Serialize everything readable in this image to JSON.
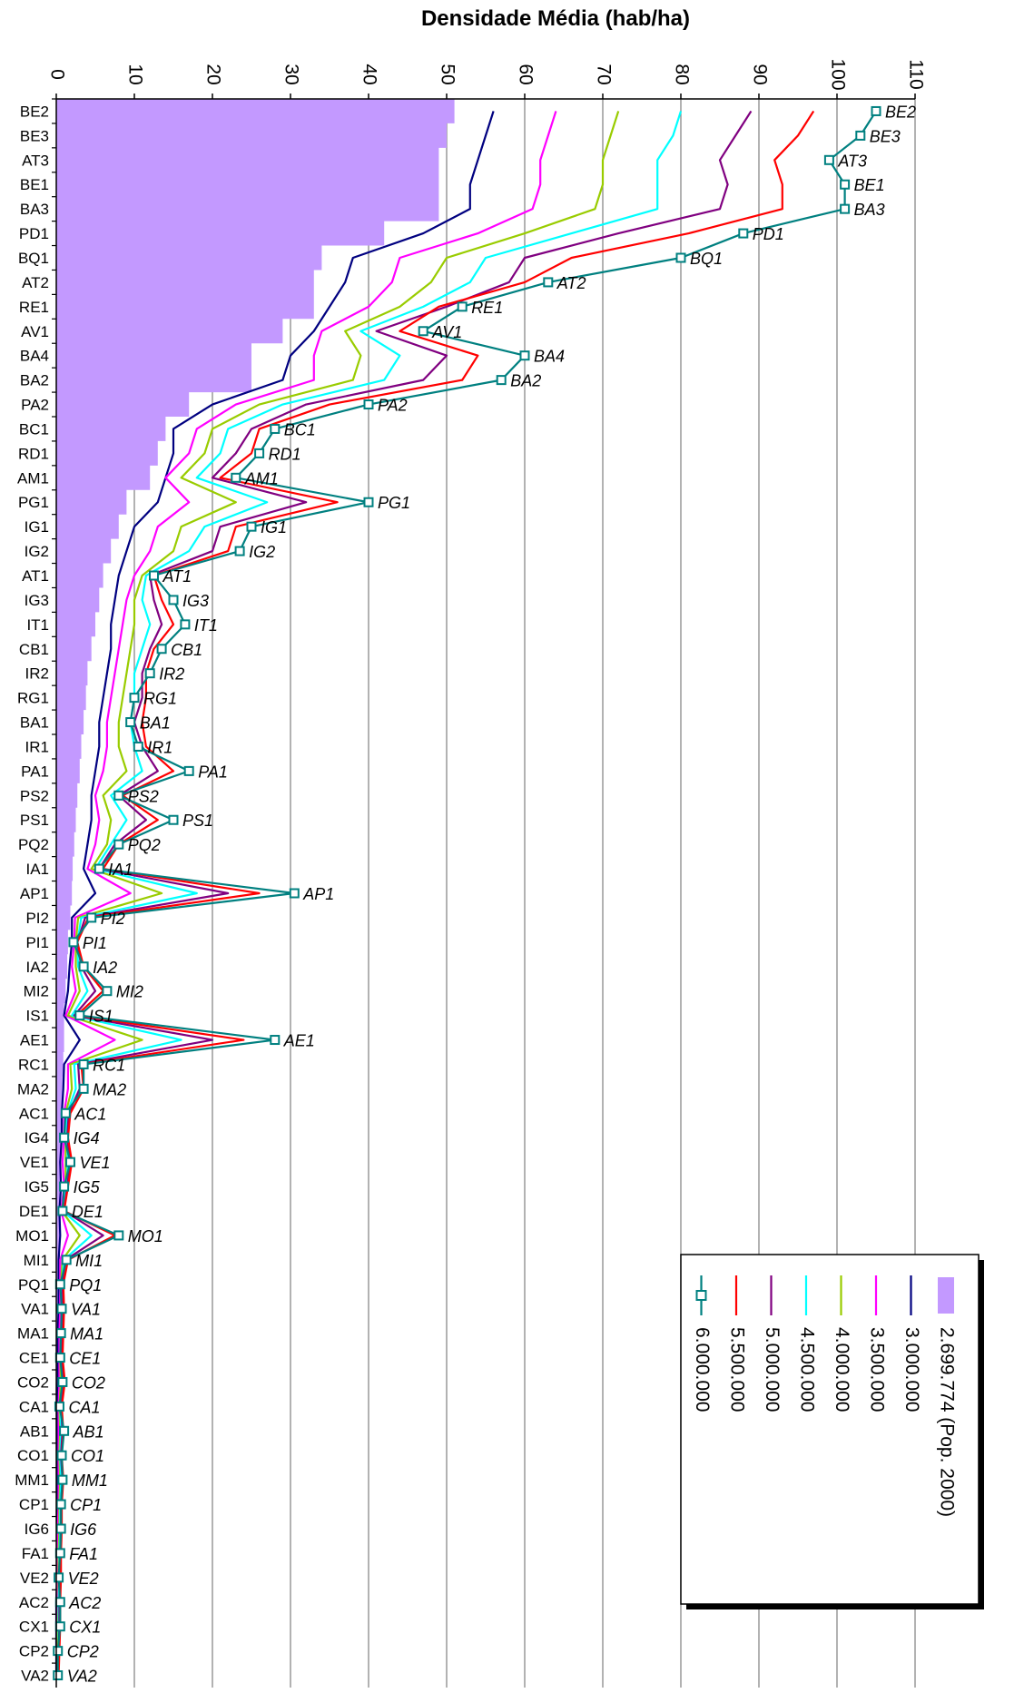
{
  "chart_data": {
    "type": "line",
    "title": "Densidade Média (hab/ha)",
    "orientation": "rotated-90-clockwise",
    "xlim": [
      0,
      110
    ],
    "ticks": [
      "0",
      "10",
      "20",
      "30",
      "40",
      "50",
      "60",
      "70",
      "80",
      "90",
      "100",
      "110"
    ],
    "categories": [
      "BE2",
      "BE3",
      "AT3",
      "BE1",
      "BA3",
      "PD1",
      "BQ1",
      "AT2",
      "RE1",
      "AV1",
      "BA4",
      "BA2",
      "PA2",
      "BC1",
      "RD1",
      "AM1",
      "PG1",
      "IG1",
      "IG2",
      "AT1",
      "IG3",
      "IT1",
      "CB1",
      "IR2",
      "RG1",
      "BA1",
      "IR1",
      "PA1",
      "PS2",
      "PS1",
      "PQ2",
      "IA1",
      "AP1",
      "PI2",
      "PI1",
      "IA2",
      "MI2",
      "IS1",
      "AE1",
      "RC1",
      "MA2",
      "AC1",
      "IG4",
      "VE1",
      "IG5",
      "DE1",
      "MO1",
      "MI1",
      "PQ1",
      "VA1",
      "MA1",
      "CE1",
      "CO2",
      "CA1",
      "AB1",
      "CO1",
      "MM1",
      "CP1",
      "IG6",
      "FA1",
      "VE2",
      "AC2",
      "CX1",
      "CP2",
      "VA2"
    ],
    "series": [
      {
        "name": "2.699.774 (Pop. 2000)",
        "kind": "area",
        "color": "#c399ff",
        "values": [
          51,
          50,
          49,
          49,
          49,
          42,
          34,
          33,
          33,
          29,
          25,
          25,
          17,
          14,
          13,
          12,
          9,
          8,
          7,
          6,
          5.5,
          5,
          4.5,
          4,
          3.8,
          3.5,
          3.2,
          3,
          2.7,
          2.5,
          2.3,
          2.1,
          2,
          1.8,
          1.5,
          1.4,
          1.2,
          1,
          1,
          0.9,
          0.8,
          0.7,
          0.6,
          0.5,
          0.5,
          0.4,
          0.4,
          0.3,
          0.3,
          0.3,
          0.2,
          0.2,
          0.2,
          0.1,
          0.1,
          0.1,
          0.1,
          0.1,
          0.1,
          0.1,
          0.1,
          0,
          0,
          0,
          0
        ]
      },
      {
        "name": "3.000.000",
        "kind": "line",
        "color": "#000080",
        "values": [
          56,
          55,
          54,
          53,
          53,
          47,
          38,
          37,
          35,
          33,
          30,
          29,
          20,
          15,
          15,
          14,
          13,
          10,
          9,
          8,
          7.5,
          7,
          7,
          6.5,
          6,
          5.5,
          5.5,
          5,
          4.5,
          4.5,
          4,
          3.5,
          5,
          2,
          2,
          1.7,
          1.5,
          1,
          3,
          1,
          0.9,
          0.7,
          0.7,
          0.5,
          0.6,
          0.4,
          0.5,
          0.3,
          0.3,
          0.3,
          0.2,
          0.2,
          0.2,
          0.1,
          0.1,
          0.1,
          0.1,
          0.1,
          0.1,
          0.1,
          0.1,
          0,
          0,
          0,
          0
        ]
      },
      {
        "name": "3.500.000",
        "kind": "line",
        "color": "#ff00ff",
        "values": [
          64,
          63,
          62,
          62,
          61,
          54,
          44,
          43,
          40,
          34,
          33,
          33,
          23,
          18,
          17,
          14,
          17,
          13,
          12,
          10,
          9,
          8.5,
          8,
          7.5,
          7,
          6.5,
          6.5,
          6,
          5,
          5.5,
          5,
          4,
          9.5,
          2.4,
          2.3,
          2,
          2.5,
          1.2,
          7.5,
          1.5,
          1.5,
          1,
          1,
          0.8,
          1,
          0.6,
          1.5,
          0.5,
          0.5,
          0.5,
          0.4,
          0.4,
          0.4,
          0.3,
          0.3,
          0.3,
          0.3,
          0.3,
          0.2,
          0.2,
          0.2,
          0.1,
          0.1,
          0.1,
          0.1
        ]
      },
      {
        "name": "4.000.000",
        "kind": "line",
        "color": "#99cc00",
        "values": [
          72,
          71,
          70,
          70,
          69,
          60,
          50,
          48,
          44,
          37,
          39,
          38,
          26,
          20,
          19,
          16,
          23,
          16,
          15,
          11,
          10,
          10,
          9.5,
          9,
          8.5,
          8,
          8,
          9,
          6,
          7,
          6.5,
          4.5,
          13.5,
          2.8,
          2.5,
          2.5,
          3,
          1.5,
          11,
          1.8,
          2,
          1.2,
          1.2,
          1.2,
          1.2,
          0.7,
          3,
          0.8,
          0.6,
          0.7,
          0.6,
          0.5,
          0.6,
          0.4,
          0.5,
          0.4,
          0.5,
          0.4,
          0.4,
          0.3,
          0.3,
          0.3,
          0.2,
          0.2,
          0.2
        ]
      },
      {
        "name": "4.500.000",
        "kind": "line",
        "color": "#00ffff",
        "values": [
          80,
          79,
          77,
          77,
          77,
          66,
          55,
          53,
          47,
          39,
          44,
          42,
          29,
          22,
          21,
          18,
          27,
          19,
          17,
          11.5,
          11,
          12,
          11,
          10,
          10,
          9.5,
          10,
          11,
          7,
          9,
          7,
          5,
          18,
          3.2,
          2.7,
          2.8,
          4,
          2,
          16,
          2.3,
          2.5,
          1.4,
          1.3,
          1.5,
          1.3,
          0.8,
          4.5,
          1,
          0.7,
          0.8,
          0.7,
          0.6,
          0.8,
          0.5,
          0.6,
          0.5,
          0.6,
          0.5,
          0.5,
          0.4,
          0.4,
          0.3,
          0.3,
          0.3,
          0.2
        ]
      },
      {
        "name": "5.000.000",
        "kind": "line",
        "color": "#800080",
        "values": [
          89,
          87,
          85,
          86,
          85,
          72,
          60,
          58,
          50,
          41,
          50,
          47,
          32,
          25,
          23,
          20,
          32,
          21,
          20,
          12,
          12.5,
          13.5,
          12,
          11,
          11,
          10,
          11,
          13,
          8,
          11.5,
          7.5,
          5.5,
          22,
          3.7,
          2.7,
          3.2,
          5,
          2.3,
          20,
          2.8,
          3,
          1.6,
          1.4,
          1.8,
          1.4,
          1,
          6,
          1.2,
          0.8,
          0.9,
          0.8,
          0.7,
          1,
          0.6,
          0.8,
          0.6,
          0.8,
          0.6,
          0.6,
          0.5,
          0.5,
          0.4,
          0.4,
          0.3,
          0.2
        ]
      },
      {
        "name": "5.500.000",
        "kind": "line",
        "color": "#ff0000",
        "values": [
          97,
          95,
          92,
          93,
          93,
          81,
          66,
          60,
          49,
          44,
          54,
          52,
          35,
          26,
          25,
          21,
          36,
          23,
          22,
          12.5,
          13.5,
          15,
          12.5,
          11.5,
          11.5,
          11,
          11.5,
          15,
          8.5,
          13,
          8,
          6,
          26,
          4.1,
          2.7,
          3.5,
          6,
          2.6,
          24,
          3.2,
          3.5,
          1.8,
          1.5,
          2,
          1.5,
          1,
          7.5,
          1.5,
          0.9,
          1,
          0.9,
          0.8,
          1.1,
          0.7,
          0.9,
          0.7,
          0.9,
          0.7,
          0.7,
          0.6,
          0.6,
          0.5,
          0.5,
          0.4,
          0.3
        ]
      },
      {
        "name": "6.000.000",
        "kind": "marked",
        "color": "#008080",
        "values": [
          105,
          103,
          99,
          101,
          101,
          88,
          80,
          63,
          52,
          47,
          60,
          57,
          40,
          28,
          26,
          23,
          40,
          25,
          23.5,
          12.5,
          15,
          16.5,
          13.5,
          12,
          10,
          9.5,
          10.5,
          17,
          8,
          15,
          8,
          5.5,
          30.5,
          4.5,
          2.2,
          3.5,
          6.5,
          3,
          28,
          3.5,
          3.5,
          1.2,
          1,
          1.8,
          1,
          0.8,
          8,
          1.3,
          0.5,
          0.7,
          0.6,
          0.5,
          0.8,
          0.4,
          1,
          0.7,
          0.8,
          0.6,
          0.6,
          0.5,
          0.3,
          0.5,
          0.5,
          0.2,
          0.2
        ]
      }
    ],
    "legend": {
      "placement": "bottom-right",
      "order": [
        "2.699.774 (Pop. 2000)",
        "3.000.000",
        "3.500.000",
        "4.000.000",
        "4.500.000",
        "5.000.000",
        "5.500.000",
        "6.000.000"
      ]
    },
    "grid": true
  }
}
